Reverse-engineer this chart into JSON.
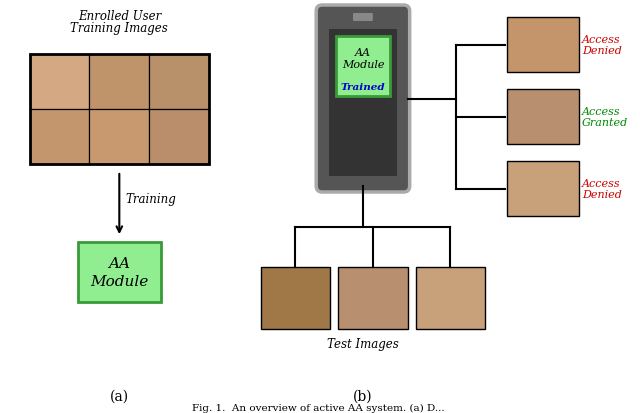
{
  "caption_a": "(a)",
  "caption_b": "(b)",
  "enrolled_title_line1": "Enrolled User",
  "enrolled_title_line2": "Training Images",
  "training_label": "Training",
  "aa_module_label": "AA\nModule",
  "aa_module_trained_label": "AA\nModule",
  "trained_label": "Trained",
  "test_images_label": "Test Images",
  "access_denied_1": "Access\nDenied",
  "access_granted": "Access\nGranted",
  "access_denied_2": "Access\nDenied",
  "color_denied": "#cc0000",
  "color_granted": "#008800",
  "color_trained_text": "#0000cc",
  "color_line": "#000000",
  "color_phone_body": "#555555",
  "color_phone_screen": "#333333",
  "color_aa_border": "#3a9a3a",
  "color_aa_fill": "#90EE90",
  "color_face_grid": [
    "#d4a882",
    "#c0946a",
    "#b8906a",
    "#c4966e",
    "#c8986e",
    "#ba8e6a"
  ],
  "color_face_right": [
    "#c4946a",
    "#b89070",
    "#c8a07a"
  ],
  "color_face_test": [
    "#a07848",
    "#b89070",
    "#c8a07a"
  ],
  "bg_color": "#ffffff",
  "fig_width": 6.4,
  "fig_height": 4.14
}
